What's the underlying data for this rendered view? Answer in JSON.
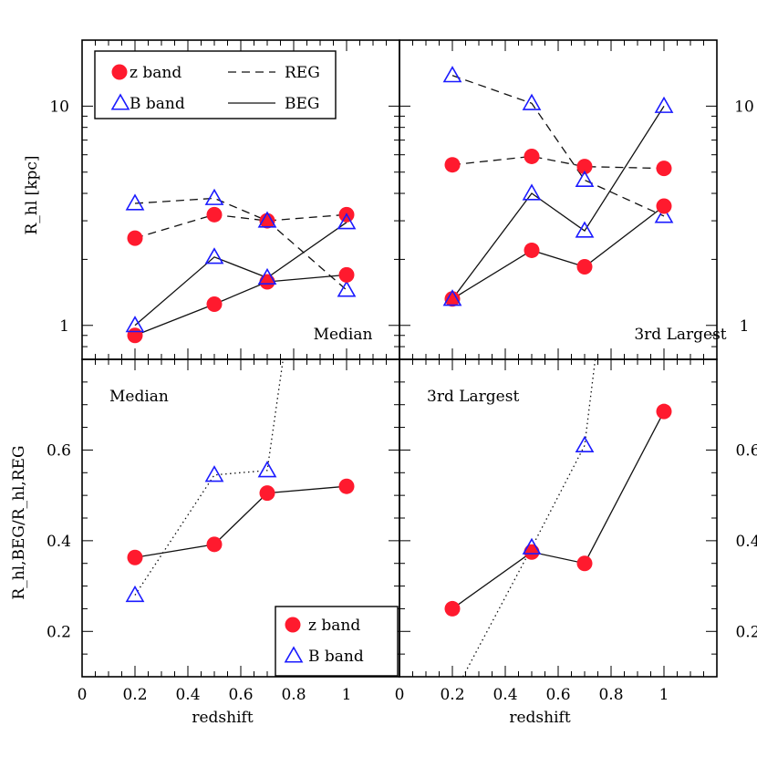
{
  "chart_data": [
    {
      "type": "line",
      "panel": "top-left",
      "yscale": "log",
      "xlim": [
        0,
        1.2
      ],
      "ylim": [
        0.7,
        20
      ],
      "ylabel": "R_hl [kpc]",
      "yticklabels": [
        "1",
        "10"
      ],
      "annotation": "Median",
      "series": [
        {
          "name": "z band REG",
          "style": "dashed",
          "marker": "circle",
          "x": [
            0.2,
            0.5,
            0.7,
            1.0
          ],
          "y": [
            2.5,
            3.2,
            3.0,
            3.2
          ]
        },
        {
          "name": "B band REG",
          "style": "dashed",
          "marker": "triangle",
          "x": [
            0.2,
            0.5,
            0.7,
            1.0
          ],
          "y": [
            3.6,
            3.8,
            3.0,
            1.45
          ]
        },
        {
          "name": "z band BEG",
          "style": "solid",
          "marker": "circle",
          "x": [
            0.2,
            0.5,
            0.7,
            1.0
          ],
          "y": [
            0.9,
            1.25,
            1.58,
            1.7
          ]
        },
        {
          "name": "B band BEG",
          "style": "solid",
          "marker": "triangle",
          "x": [
            0.2,
            0.5,
            0.7,
            1.0
          ],
          "y": [
            1.0,
            2.05,
            1.65,
            2.95
          ]
        }
      ],
      "legend": [
        {
          "label": "z band",
          "marker": "circle"
        },
        {
          "label": "B band",
          "marker": "triangle"
        },
        {
          "label": "REG",
          "style": "dashed"
        },
        {
          "label": "BEG",
          "style": "solid"
        }
      ]
    },
    {
      "type": "line",
      "panel": "top-right",
      "yscale": "log",
      "xlim": [
        0,
        1.2
      ],
      "ylim": [
        0.7,
        20
      ],
      "yticklabels": [
        "1",
        "10"
      ],
      "annotation": "3rd Largest",
      "series": [
        {
          "name": "z band REG",
          "style": "dashed",
          "marker": "circle",
          "x": [
            0.2,
            0.5,
            0.7,
            1.0
          ],
          "y": [
            5.4,
            5.9,
            5.3,
            5.2
          ]
        },
        {
          "name": "B band REG",
          "style": "dashed",
          "marker": "triangle",
          "x": [
            0.2,
            0.5,
            0.7,
            1.0
          ],
          "y": [
            13.8,
            10.3,
            4.6,
            3.15
          ]
        },
        {
          "name": "z band BEG",
          "style": "solid",
          "marker": "circle",
          "x": [
            0.2,
            0.5,
            0.7,
            1.0
          ],
          "y": [
            1.32,
            2.2,
            1.85,
            3.5
          ]
        },
        {
          "name": "B band BEG",
          "style": "solid",
          "marker": "triangle",
          "x": [
            0.2,
            0.5,
            0.7,
            1.0
          ],
          "y": [
            1.32,
            4.0,
            2.7,
            10.0
          ]
        }
      ]
    },
    {
      "type": "line",
      "panel": "bottom-left",
      "xlim": [
        0,
        1.2
      ],
      "ylim": [
        0.1,
        0.8
      ],
      "ylabel": "R_hl,BEG/R_hl,REG",
      "xlabel": "redshift",
      "xticklabels": [
        "0",
        "0.2",
        "0.4",
        "0.6",
        "0.8",
        "1"
      ],
      "yticklabels": [
        "0.2",
        "0.4",
        "0.6"
      ],
      "annotation": "Median",
      "series": [
        {
          "name": "z band",
          "style": "solid",
          "marker": "circle",
          "x": [
            0.2,
            0.5,
            0.7,
            1.0
          ],
          "y": [
            0.363,
            0.392,
            0.505,
            0.52
          ]
        },
        {
          "name": "B band",
          "style": "dotted",
          "marker": "triangle",
          "x": [
            0.2,
            0.5,
            0.7,
            0.76
          ],
          "y": [
            0.28,
            0.545,
            0.555,
            0.8
          ],
          "hidden_markers": [
            3
          ]
        }
      ],
      "legend": [
        {
          "label": "z band",
          "marker": "circle"
        },
        {
          "label": "B band",
          "marker": "triangle"
        }
      ]
    },
    {
      "type": "line",
      "panel": "bottom-right",
      "xlim": [
        0,
        1.2
      ],
      "ylim": [
        0.1,
        0.8
      ],
      "xlabel": "redshift",
      "xticklabels": [
        "0",
        "0.2",
        "0.4",
        "0.6",
        "0.8",
        "1"
      ],
      "yticklabels": [
        "0.2",
        "0.4",
        "0.6"
      ],
      "annotation": "3rd Largest",
      "series": [
        {
          "name": "z band",
          "style": "solid",
          "marker": "circle",
          "x": [
            0.2,
            0.5,
            0.7,
            1.0
          ],
          "y": [
            0.25,
            0.375,
            0.35,
            0.685
          ]
        },
        {
          "name": "B band",
          "style": "dotted",
          "marker": "triangle",
          "x": [
            0.24,
            0.5,
            0.7,
            0.74
          ],
          "y": [
            0.1,
            0.385,
            0.61,
            0.8
          ],
          "hidden_markers": [
            0,
            3
          ]
        }
      ]
    }
  ],
  "colors": {
    "z_band_marker": "#ff1a2e",
    "z_band_line": "#ff1a2e",
    "b_band_marker": "#1a1aff",
    "b_band_line": "#1a1aff",
    "reg_line": "#111111",
    "beg_line": "#111111",
    "z_band_legend_text": "#ff1a2e",
    "b_band_legend_text": "#1a1aff"
  }
}
